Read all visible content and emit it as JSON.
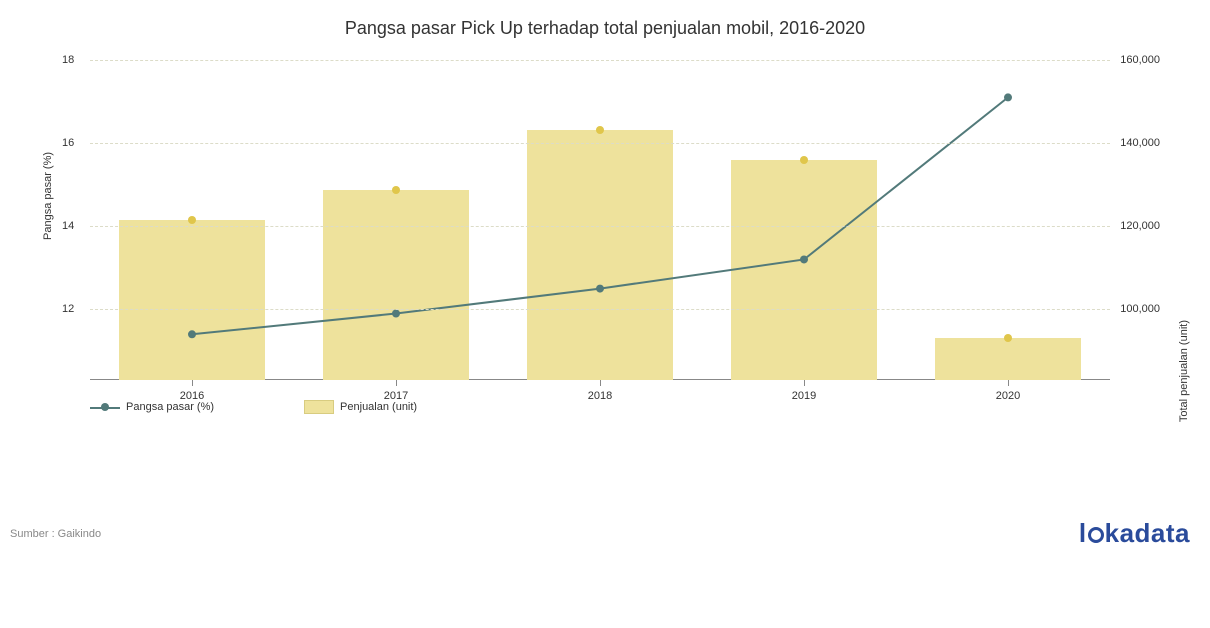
{
  "title": "Pangsa pasar Pick Up terhadap total penjualan mobil, 2016-2020",
  "chart": {
    "categories": [
      "2016",
      "2017",
      "2018",
      "2019",
      "2020"
    ],
    "bars": {
      "label": "Penjualan (unit)",
      "color": "#eee29c",
      "top_marker_color": "#e0c64b",
      "values": [
        120000,
        127500,
        142500,
        135000,
        90500
      ],
      "bar_width_frac": 0.72
    },
    "line": {
      "label": "Pangsa pasar (%)",
      "color": "#527a7a",
      "marker_color": "#527a7a",
      "values": [
        11.4,
        11.9,
        12.5,
        13.2,
        17.1
      ],
      "line_width": 2,
      "marker_radius": 4
    },
    "y_left": {
      "label": "Pangsa pasar (%)",
      "min": 10.3,
      "max": 18,
      "ticks": [
        12,
        14,
        16,
        18
      ]
    },
    "y_right": {
      "label": "Total penjualan (unit)",
      "min": 80000,
      "max": 160000,
      "ticks": [
        100000,
        120000,
        140000,
        160000
      ],
      "tick_labels_formatted": [
        "100,000",
        "120,000",
        "140,000",
        "160,000"
      ]
    },
    "grid_color": "#dcdcc8",
    "axis_color": "#888888",
    "background": "#ffffff",
    "title_fontsize": 18,
    "label_fontsize": 11
  },
  "legend": {
    "line": "Pangsa pasar (%)",
    "bar": "Penjualan (unit)"
  },
  "source": "Sumber : Gaikindo",
  "brand": {
    "pre": "l",
    "post": "kadata",
    "color": "#2a4b9b"
  }
}
